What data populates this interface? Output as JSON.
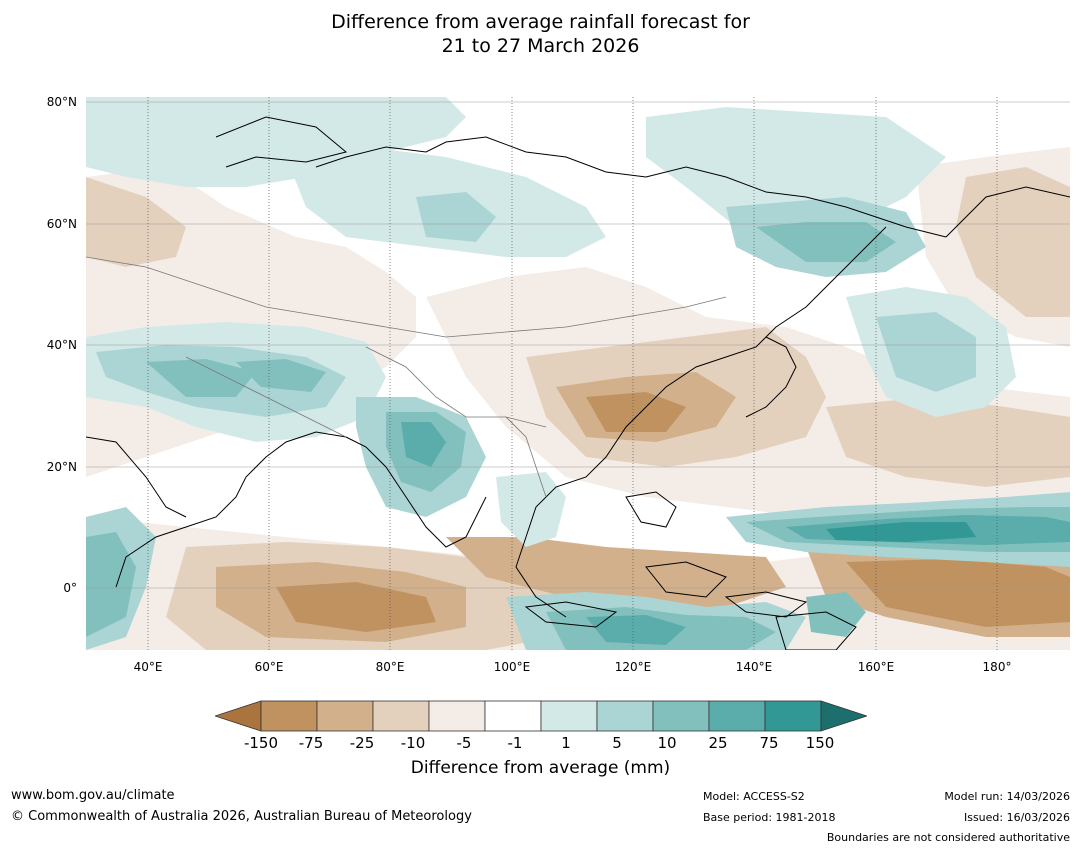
{
  "title": {
    "line1": "Difference from average rainfall forecast for",
    "line2": "21 to 27 March 2026"
  },
  "axes": {
    "lat_labels": [
      "80°N",
      "60°N",
      "40°N",
      "20°N",
      "0°"
    ],
    "lon_labels": [
      "40°E",
      "60°E",
      "80°E",
      "100°E",
      "120°E",
      "140°E",
      "160°E",
      "180°"
    ]
  },
  "colorbar": {
    "title": "Difference from average (mm)",
    "ticks": [
      "-150",
      "-75",
      "-25",
      "-10",
      "-5",
      "-1",
      "1",
      "5",
      "10",
      "25",
      "75",
      "150"
    ],
    "colors": [
      "#ab733e",
      "#bf9260",
      "#d2b08b",
      "#e4d1bd",
      "#f4ede7",
      "#ffffff",
      "#d3e9e8",
      "#aad5d4",
      "#82c0be",
      "#5aadab",
      "#319896",
      "#1d6f6d"
    ]
  },
  "footer": {
    "website": "www.bom.gov.au/climate",
    "copyright": "© Commonwealth of Australia 2026, Australian Bureau of Meteorology",
    "model": "Model: ACCESS-S2",
    "base_period": "Base period: 1981-2018",
    "model_run": "Model run: 14/03/2026",
    "issued": "Issued: 16/03/2026",
    "boundaries": "Boundaries are not considered authoritative"
  }
}
